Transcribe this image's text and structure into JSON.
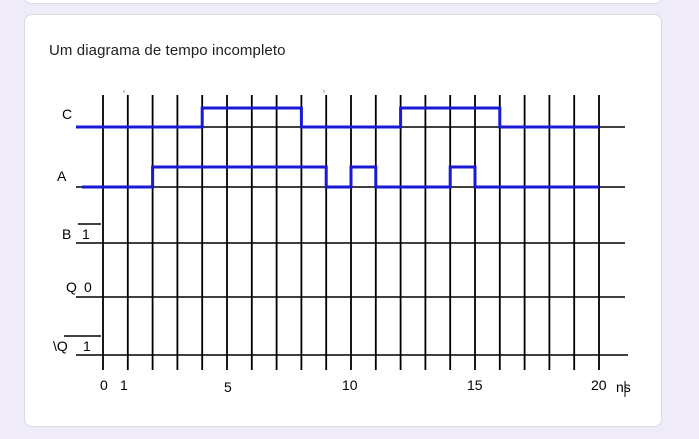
{
  "question": {
    "title": "Um diagrama de tempo incompleto"
  },
  "diagram": {
    "signals": [
      {
        "id": "c",
        "label": "C",
        "initial_value": "",
        "has_overbar": false
      },
      {
        "id": "a",
        "label": "A",
        "initial_value": "",
        "has_overbar": false
      },
      {
        "id": "b",
        "label": "B",
        "initial_value": "1",
        "has_overbar": true
      },
      {
        "id": "q",
        "label": "Q",
        "initial_value": "0",
        "has_overbar": false
      },
      {
        "id": "qbar",
        "label": "\\Q",
        "initial_value": "1",
        "has_overbar": true
      }
    ],
    "axis": {
      "tick_labels": [
        "0",
        "1",
        "5",
        "10",
        "15",
        "20"
      ],
      "unit": "ns"
    },
    "waveforms": {
      "c": [
        [
          -1,
          0
        ],
        [
          4,
          1
        ],
        [
          8,
          0
        ],
        [
          12,
          1
        ],
        [
          16,
          0
        ],
        [
          20,
          0
        ]
      ],
      "a": [
        [
          -1,
          0
        ],
        [
          2,
          1
        ],
        [
          9,
          0
        ],
        [
          10,
          1
        ],
        [
          11,
          0
        ],
        [
          14,
          1
        ],
        [
          15,
          0
        ],
        [
          20,
          0
        ]
      ]
    },
    "waveform_color": "#1a1ad6"
  }
}
